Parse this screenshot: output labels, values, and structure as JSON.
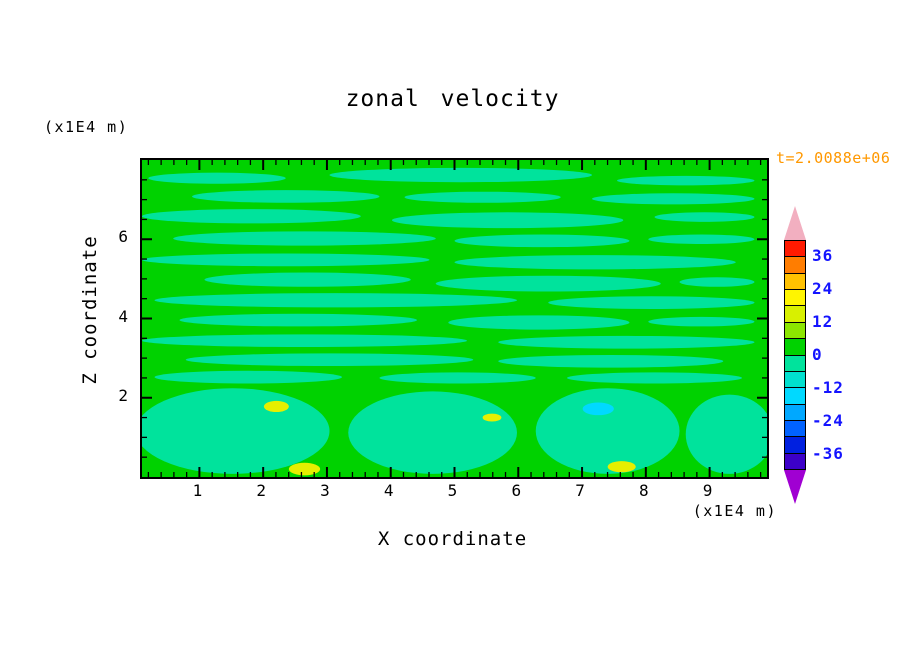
{
  "chart_data": {
    "type": "heatmap",
    "title": "zonal velocity",
    "timestamp": "t=2.0088e+06",
    "x_label": "X coordinate",
    "x_unit": "(x1E4 m)",
    "y_label": "Z coordinate",
    "y_unit": "(x1E4 m)",
    "x_range": [
      0.1,
      9.9
    ],
    "y_range": [
      0,
      8
    ],
    "x_ticks": [
      1,
      2,
      3,
      4,
      5,
      6,
      7,
      8,
      9
    ],
    "y_ticks": [
      2,
      4,
      6
    ],
    "x_minor_step": 0.2,
    "y_minor_step": 0.5,
    "field_description": "Zonal velocity contour field: background values 0 to 6 (green) with thin horizontal streak bands of -6 to 0 (spring green) through the interior; broad negative blobs along the lower boundary; small yellow maxima (~+12) near z=2 and the bottom edge; one cyan minimum (~-12) near x=7, z=1.5",
    "colors": {
      "field": "#00d200",
      "streak": "#00e39c",
      "spot_yellow": "#e6ef00",
      "spot_cyan": "#00d9ff",
      "timestamp": "#ff9800",
      "colorbar_label": "#1414ff",
      "axis": "#000000",
      "background": "#ffffff"
    },
    "colorbar": {
      "levels_labeled": [
        36,
        24,
        12,
        0,
        -12,
        -24,
        -36
      ],
      "segment_span": 6,
      "segments_top_to_bottom": [
        "#ff1a00",
        "#ff7d00",
        "#ffc100",
        "#fff500",
        "#d8f000",
        "#8ce600",
        "#00d200",
        "#00e39c",
        "#00e0cf",
        "#00d9ff",
        "#00a8ff",
        "#0062ff",
        "#0020e0",
        "#3c00c8"
      ],
      "arrow_top_color": "#f2afc0",
      "arrow_bottom_color": "#a000d2"
    },
    "blobs": [
      {
        "x": 0.01,
        "y": 0.04,
        "w": 0.22,
        "h": 0.035
      },
      {
        "x": 0.3,
        "y": 0.025,
        "w": 0.42,
        "h": 0.045
      },
      {
        "x": 0.76,
        "y": 0.05,
        "w": 0.22,
        "h": 0.03
      },
      {
        "x": 0.08,
        "y": 0.095,
        "w": 0.3,
        "h": 0.04
      },
      {
        "x": 0.42,
        "y": 0.1,
        "w": 0.25,
        "h": 0.035
      },
      {
        "x": 0.72,
        "y": 0.105,
        "w": 0.26,
        "h": 0.035
      },
      {
        "x": 0.0,
        "y": 0.155,
        "w": 0.35,
        "h": 0.045
      },
      {
        "x": 0.4,
        "y": 0.165,
        "w": 0.37,
        "h": 0.05
      },
      {
        "x": 0.82,
        "y": 0.165,
        "w": 0.16,
        "h": 0.03
      },
      {
        "x": 0.05,
        "y": 0.225,
        "w": 0.42,
        "h": 0.045
      },
      {
        "x": 0.5,
        "y": 0.235,
        "w": 0.28,
        "h": 0.04
      },
      {
        "x": 0.81,
        "y": 0.235,
        "w": 0.17,
        "h": 0.03
      },
      {
        "x": 0.0,
        "y": 0.295,
        "w": 0.46,
        "h": 0.04
      },
      {
        "x": 0.5,
        "y": 0.3,
        "w": 0.45,
        "h": 0.045
      },
      {
        "x": 0.1,
        "y": 0.355,
        "w": 0.33,
        "h": 0.045
      },
      {
        "x": 0.47,
        "y": 0.365,
        "w": 0.36,
        "h": 0.05
      },
      {
        "x": 0.86,
        "y": 0.37,
        "w": 0.12,
        "h": 0.03
      },
      {
        "x": 0.02,
        "y": 0.42,
        "w": 0.58,
        "h": 0.045
      },
      {
        "x": 0.65,
        "y": 0.43,
        "w": 0.33,
        "h": 0.04
      },
      {
        "x": 0.06,
        "y": 0.485,
        "w": 0.38,
        "h": 0.04
      },
      {
        "x": 0.49,
        "y": 0.49,
        "w": 0.29,
        "h": 0.045
      },
      {
        "x": 0.81,
        "y": 0.495,
        "w": 0.17,
        "h": 0.03
      },
      {
        "x": 0.0,
        "y": 0.55,
        "w": 0.52,
        "h": 0.04
      },
      {
        "x": 0.57,
        "y": 0.555,
        "w": 0.41,
        "h": 0.04
      },
      {
        "x": 0.07,
        "y": 0.61,
        "w": 0.46,
        "h": 0.04
      },
      {
        "x": 0.57,
        "y": 0.615,
        "w": 0.36,
        "h": 0.04
      },
      {
        "x": 0.02,
        "y": 0.665,
        "w": 0.3,
        "h": 0.04
      },
      {
        "x": 0.38,
        "y": 0.67,
        "w": 0.25,
        "h": 0.035
      },
      {
        "x": 0.68,
        "y": 0.67,
        "w": 0.28,
        "h": 0.035
      },
      {
        "x": -0.01,
        "y": 0.72,
        "w": 0.31,
        "h": 0.27
      },
      {
        "x": 0.33,
        "y": 0.73,
        "w": 0.27,
        "h": 0.26
      },
      {
        "x": 0.63,
        "y": 0.72,
        "w": 0.23,
        "h": 0.27
      },
      {
        "x": 0.87,
        "y": 0.74,
        "w": 0.14,
        "h": 0.25
      },
      {
        "x": 0.195,
        "y": 0.76,
        "w": 0.04,
        "h": 0.035,
        "c": "y"
      },
      {
        "x": 0.545,
        "y": 0.8,
        "w": 0.03,
        "h": 0.025,
        "c": "y"
      },
      {
        "x": 0.705,
        "y": 0.765,
        "w": 0.05,
        "h": 0.04,
        "c": "c"
      },
      {
        "x": 0.235,
        "y": 0.955,
        "w": 0.05,
        "h": 0.04,
        "c": "y"
      },
      {
        "x": 0.745,
        "y": 0.95,
        "w": 0.045,
        "h": 0.035,
        "c": "y"
      }
    ]
  }
}
